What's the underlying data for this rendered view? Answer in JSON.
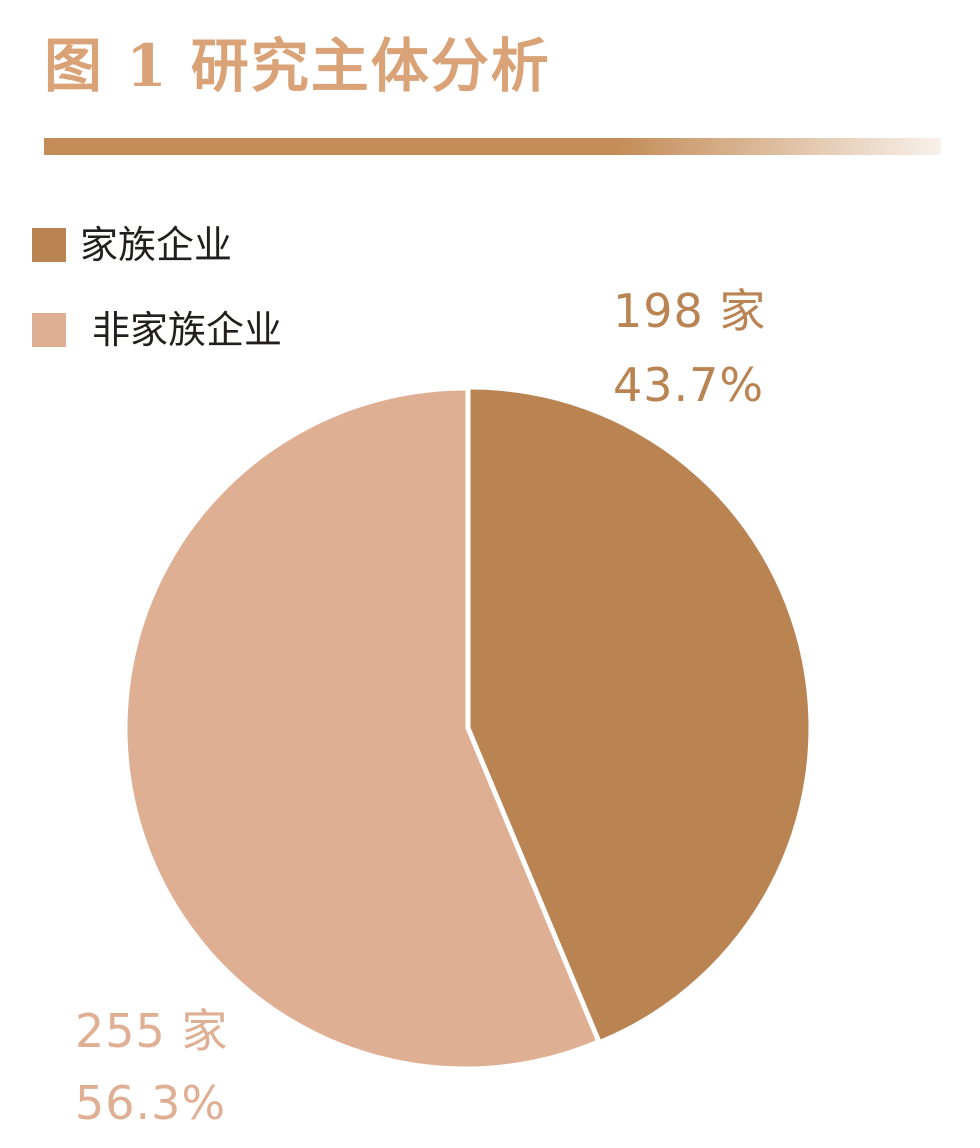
{
  "title": "图 1 研究主体分析",
  "colors": {
    "title": "#d9a277",
    "rule": "#c48c58",
    "family": "#b98352",
    "non_family": "#dfaf94",
    "legend_text": "#231f1c"
  },
  "legend": [
    {
      "label": "家族企业",
      "color": "#b98352"
    },
    {
      "label": "非家族企业",
      "color": "#dfaf94"
    }
  ],
  "data_labels": {
    "family_count": "198 家",
    "family_pct": "43.7%",
    "non_family_count": "255 家",
    "non_family_pct": "56.3%"
  },
  "chart_data": {
    "type": "pie",
    "title": "图 1 研究主体分析",
    "legend_position": "top-left",
    "slices": [
      {
        "label": "家族企业",
        "count": 198,
        "percent": 43.7,
        "color": "#b98352"
      },
      {
        "label": "非家族企业",
        "count": 255,
        "percent": 56.3,
        "color": "#dfaf94"
      }
    ]
  }
}
